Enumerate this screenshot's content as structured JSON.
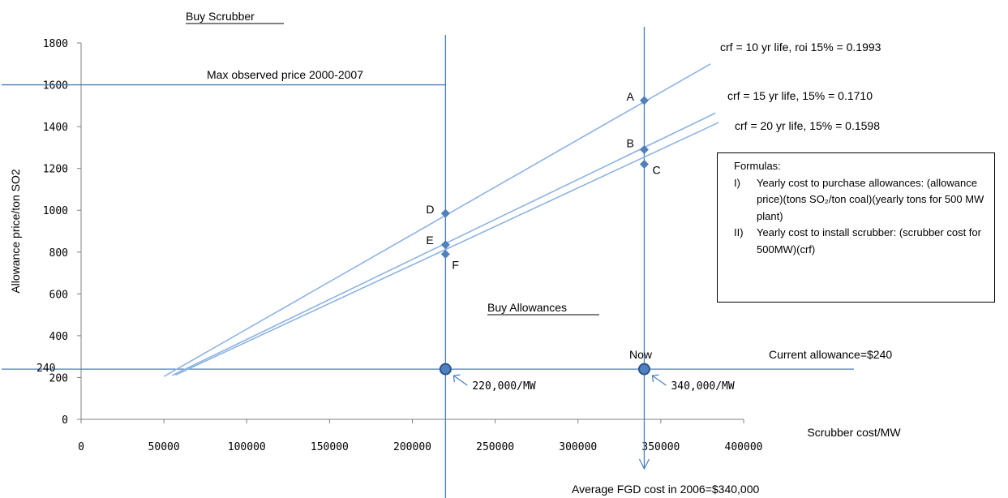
{
  "chart_data": {
    "type": "line",
    "xlabel": "Scrubber cost/MW",
    "ylabel": "Allowance price/ton SO2",
    "xlim": [
      0,
      400000
    ],
    "ylim": [
      0,
      1800
    ],
    "x_ticks": [
      "0",
      "50000",
      "100000",
      "150000",
      "200000",
      "250000",
      "300000",
      "350000",
      "400000"
    ],
    "y_ticks": [
      "0",
      "200",
      "400",
      "600",
      "800",
      "1000",
      "1200",
      "1400",
      "1600",
      "1800"
    ],
    "grid": false,
    "series": [
      {
        "name": "crf = 10 yr life, roi 15% = 0.1993",
        "x": [
          50000,
          380000
        ],
        "y": [
          205,
          1700
        ],
        "color": "#8db3e2"
      },
      {
        "name": "crf = 15 yr life, 15% = 0.1710",
        "x": [
          55000,
          383000
        ],
        "y": [
          210,
          1465
        ],
        "color": "#8db3e2"
      },
      {
        "name": "crf = 20 yr life, 15% = 0.1598",
        "x": [
          57000,
          385000
        ],
        "y": [
          212,
          1420
        ],
        "color": "#8db3e2"
      }
    ],
    "points": [
      {
        "label": "A",
        "x": 340000,
        "y": 1525
      },
      {
        "label": "B",
        "x": 340000,
        "y": 1290
      },
      {
        "label": "C",
        "x": 340000,
        "y": 1220
      },
      {
        "label": "D",
        "x": 220000,
        "y": 985
      },
      {
        "label": "E",
        "x": 220000,
        "y": 835
      },
      {
        "label": "F",
        "x": 220000,
        "y": 790
      }
    ],
    "highlight_points": [
      {
        "x": 220000,
        "y": 240,
        "label": "220,000/MW"
      },
      {
        "x": 340000,
        "y": 240,
        "label": "340,000/MW"
      }
    ],
    "reference_lines": {
      "current_allowance": 240,
      "max_observed_price": 1600,
      "scrubber_cost_a": 220000,
      "scrubber_cost_b": 340000
    },
    "annotations": {
      "buy_scrubber": "Buy Scrubber",
      "buy_allowances": "Buy Allowances",
      "max_observed": "Max observed price 2000-2007",
      "y240": "240",
      "now": "Now",
      "current_allowance": "Current allowance=$240",
      "fgd_cost": "Average FGD cost in 2006=$340,000"
    }
  },
  "formulas": {
    "title": "Formulas:",
    "items": [
      {
        "num": "I)",
        "text": "Yearly cost to purchase allowances: (allowance price)(tons SO₂/ton coal)(yearly tons for 500 MW plant)"
      },
      {
        "num": "II)",
        "text": "Yearly cost to install scrubber: (scrubber cost for 500MW)(crf)"
      }
    ]
  }
}
